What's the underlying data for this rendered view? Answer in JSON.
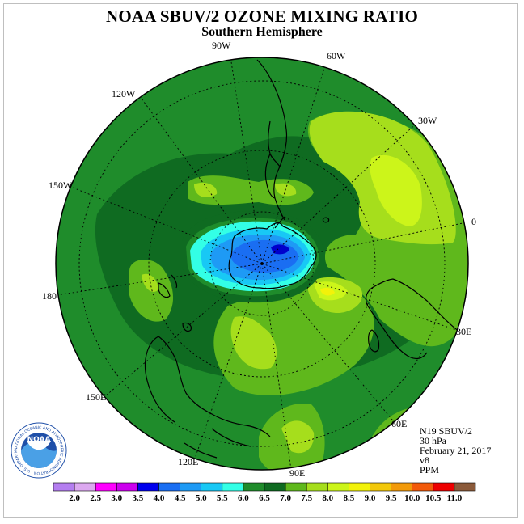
{
  "header": {
    "title": "NOAA SBUV/2 OZONE MIXING RATIO",
    "subtitle": "Southern Hemisphere"
  },
  "map": {
    "projection": "south-polar-stereographic",
    "longitude_labels": [
      "90W",
      "60W",
      "30W",
      "0",
      "30E",
      "60E",
      "90E",
      "120E",
      "150E",
      "180",
      "150W",
      "120W"
    ],
    "field_colors": {
      "6.0-6.5": "#1f8c2b",
      "6.5-7.0": "#0f6b21",
      "7.0-7.5": "#5fb81c",
      "7.5-8.0": "#a6de1c",
      "8.0-8.5": "#ccf51a",
      "8.5-9.0": "#f2f20a",
      "5.5-6.0": "#33ffe6",
      "5.0-5.5": "#1ad9f2",
      "4.5-5.0": "#1a99f2",
      "4.0-4.5": "#1a66f2",
      "3.5-4.0": "#0000cc"
    }
  },
  "info": {
    "satellite": "N19 SBUV/2",
    "level": "30 hPa",
    "date": "February 21, 2017",
    "version": "v8",
    "units": "PPM"
  },
  "colorbar": {
    "labels": [
      "2.0",
      "2.5",
      "3.0",
      "3.5",
      "4.0",
      "4.5",
      "5.0",
      "5.5",
      "6.0",
      "6.5",
      "7.0",
      "7.5",
      "8.0",
      "8.5",
      "9.0",
      "9.5",
      "10.0",
      "10.5",
      "11.0"
    ],
    "colors": [
      "#b47ef0",
      "#dca8f0",
      "#ff00ff",
      "#cc00ee",
      "#0000ee",
      "#1a6ef2",
      "#1e9af5",
      "#18c8f5",
      "#33ffe6",
      "#1f8c2b",
      "#0f6b21",
      "#5fb81c",
      "#a6de1c",
      "#ccf51a",
      "#f2f20a",
      "#f2c80a",
      "#f29a0a",
      "#f25a0a",
      "#ee0000",
      "#8b5a3a"
    ]
  },
  "logo": {
    "text": "NOAA",
    "ring_text": "NATIONAL OCEANIC AND ATMOSPHERIC ADMINISTRATION · U.S. DEPARTMENT OF COMMERCE"
  }
}
